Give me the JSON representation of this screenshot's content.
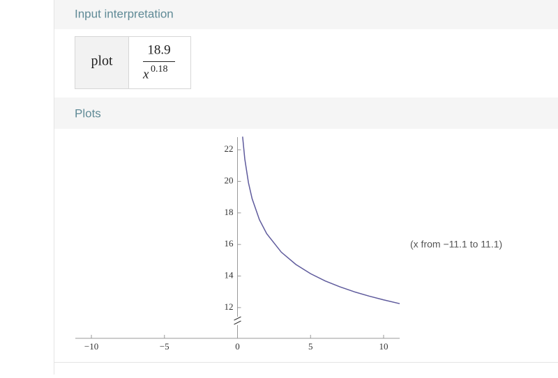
{
  "sections": {
    "input_title": "Input interpretation",
    "plots_title": "Plots"
  },
  "input": {
    "command": "plot",
    "numerator": "18.9",
    "base": "x",
    "exponent": "0.18"
  },
  "chart_data": {
    "type": "line",
    "x": [
      0.35,
      0.5,
      0.75,
      1,
      1.5,
      2,
      3,
      4,
      5,
      6,
      7,
      8,
      9,
      10,
      11.1
    ],
    "values": [
      22.83,
      21.41,
      19.91,
      18.9,
      17.57,
      16.68,
      15.51,
      14.73,
      14.15,
      13.69,
      13.32,
      13.0,
      12.73,
      12.49,
      12.25
    ],
    "color": "#5e5a9c",
    "xlim": [
      -11.1,
      11.1
    ],
    "xticks": [
      {
        "value": -10,
        "label": "−10"
      },
      {
        "value": -5,
        "label": "−5"
      },
      0,
      5,
      10
    ],
    "ylim": [
      11.2,
      22.8
    ],
    "yticks": [
      12,
      14,
      16,
      18,
      20,
      22
    ],
    "annotation": "(x from −11.1 to 11.1)"
  }
}
